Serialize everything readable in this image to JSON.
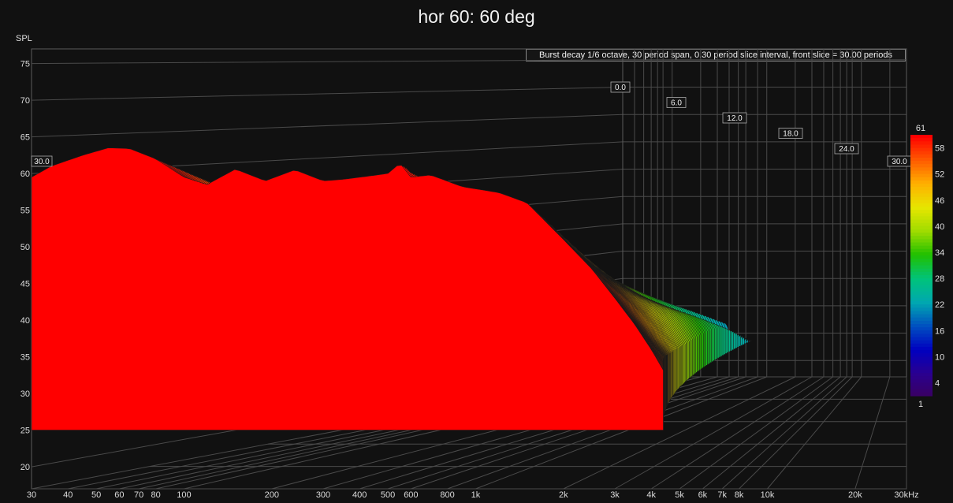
{
  "title": "hor 60: 60 deg",
  "chart_data": {
    "type": "waterfall",
    "title": "hor 60: 60 deg",
    "ylabel": "SPL",
    "annotation": "Burst decay 1/6 octave, 30 period span, 0.30 period slice interval,  front slice = 30.00 periods",
    "x_ticks": [
      "30",
      "40",
      "50",
      "60",
      "70",
      "80",
      "100",
      "200",
      "300",
      "400",
      "500",
      "600",
      "800",
      "1k",
      "2k",
      "3k",
      "4k",
      "5k",
      "6k",
      "7k",
      "8k",
      "10k",
      "20k",
      "30kHz"
    ],
    "x_tick_values": [
      30,
      40,
      50,
      60,
      70,
      80,
      100,
      200,
      300,
      400,
      500,
      600,
      800,
      1000,
      2000,
      3000,
      4000,
      5000,
      6000,
      7000,
      8000,
      10000,
      20000,
      30000
    ],
    "xlim": [
      30,
      30000
    ],
    "y_ticks": [
      "75",
      "70",
      "65",
      "60",
      "55",
      "50",
      "45",
      "40",
      "35",
      "30",
      "25",
      "20"
    ],
    "y_tick_values": [
      75,
      70,
      65,
      60,
      55,
      50,
      45,
      40,
      35,
      30,
      25,
      20
    ],
    "ylim": [
      17,
      77
    ],
    "z_ticks": [
      "0.0",
      "6.0",
      "12.0",
      "18.0",
      "24.0",
      "30.0"
    ],
    "z_tick_values": [
      0,
      6,
      12,
      18,
      24,
      30
    ],
    "zlim": [
      0,
      30
    ],
    "front_slice_periods": 30,
    "front_slice_response": {
      "freq": [
        30,
        35,
        45,
        55,
        65,
        80,
        100,
        120,
        150,
        190,
        240,
        300,
        350,
        420,
        500,
        550,
        600,
        700,
        900,
        1200,
        1500,
        2000,
        2500,
        3000,
        3500,
        4000,
        4500,
        5000
      ],
      "spl": [
        59.5,
        61,
        62.5,
        63.5,
        63.4,
        62,
        59.5,
        58.5,
        60.6,
        59,
        60.5,
        59,
        59.2,
        59.6,
        60,
        61.4,
        59.5,
        59.8,
        58.2,
        57.4,
        56,
        51,
        47,
        43,
        39.5,
        36,
        32.5,
        30
      ]
    },
    "colorbar": {
      "min": 1,
      "max": 61,
      "ticks": [
        "61",
        "58",
        "52",
        "46",
        "40",
        "34",
        "28",
        "22",
        "16",
        "10",
        "4",
        "1"
      ],
      "tick_values": [
        61,
        58,
        52,
        46,
        40,
        34,
        28,
        22,
        16,
        10,
        4,
        1
      ],
      "colors": [
        "#ff0000",
        "#ff5a00",
        "#ffb000",
        "#e6e600",
        "#a0dc00",
        "#20c000",
        "#00c37a",
        "#00a8b0",
        "#0050c0",
        "#0000c0",
        "#2a0090",
        "#3a0060"
      ]
    },
    "grid": true
  }
}
